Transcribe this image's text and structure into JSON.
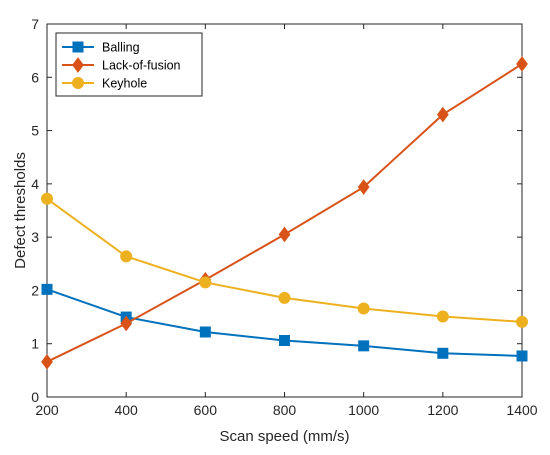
{
  "chart_data": {
    "type": "line",
    "xlabel": "Scan speed (mm/s)",
    "ylabel": "Defect thresholds",
    "x": [
      200,
      400,
      600,
      800,
      1000,
      1200,
      1400
    ],
    "xlim": [
      200,
      1400
    ],
    "ylim": [
      0,
      7
    ],
    "xticks": [
      "200",
      "400",
      "600",
      "800",
      "1000",
      "1200",
      "1400"
    ],
    "yticks": [
      "0",
      "1",
      "2",
      "3",
      "4",
      "5",
      "6",
      "7"
    ],
    "grid": false,
    "legend_position": "top-left",
    "series": [
      {
        "name": "Balling",
        "color": "#0072BD",
        "marker": "square",
        "values": [
          2.02,
          1.5,
          1.22,
          1.06,
          0.96,
          0.82,
          0.77
        ]
      },
      {
        "name": "Lack-of-fusion",
        "color": "#D95319",
        "marker": "diamond",
        "values": [
          0.66,
          1.38,
          2.2,
          3.05,
          3.94,
          5.3,
          6.25
        ]
      },
      {
        "name": "Keyhole",
        "color": "#EDB120",
        "marker": "circle",
        "values": [
          3.72,
          2.64,
          2.15,
          1.86,
          1.66,
          1.51,
          1.41
        ]
      }
    ]
  }
}
